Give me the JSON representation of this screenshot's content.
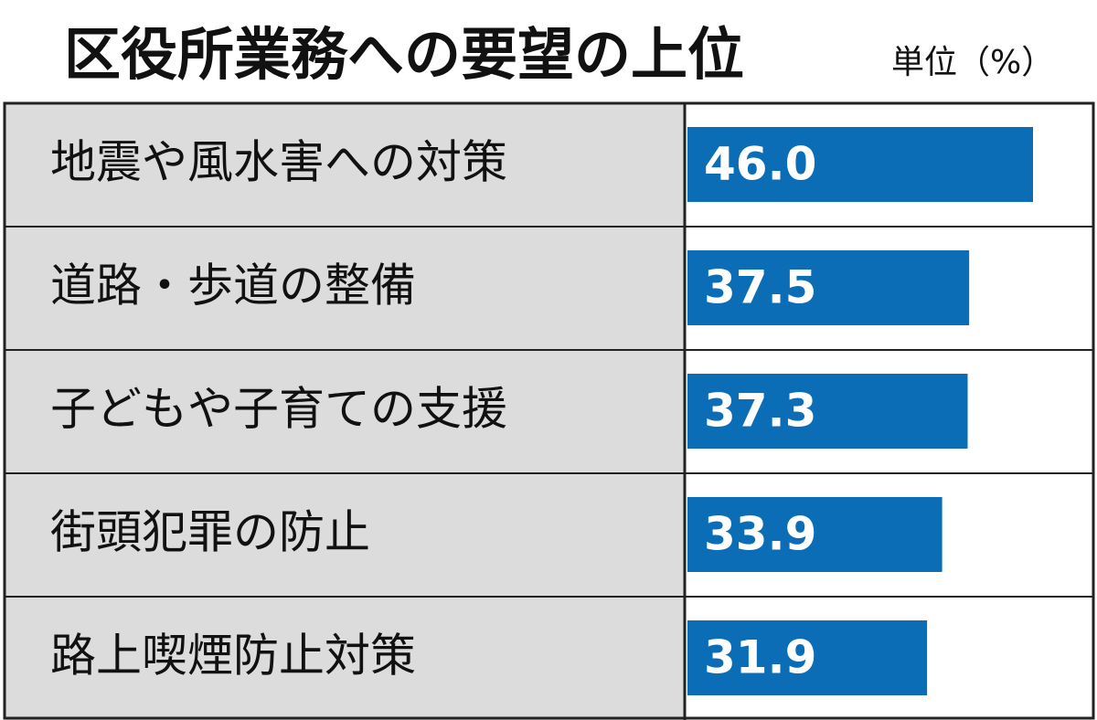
{
  "chart_data": {
    "type": "bar",
    "orientation": "horizontal",
    "title": "区役所業務への要望の上位",
    "unit": "単位（%）",
    "categories": [
      "地震や風水害への対策",
      "道路・歩道の整備",
      "子どもや子育ての支援",
      "街頭犯罪の防止",
      "路上喫煙防止対策"
    ],
    "values": [
      46.0,
      37.5,
      37.3,
      33.9,
      31.9
    ],
    "value_labels": [
      "46.0",
      "37.5",
      "37.3",
      "33.9",
      "31.9"
    ],
    "color": "#0b6db6"
  }
}
